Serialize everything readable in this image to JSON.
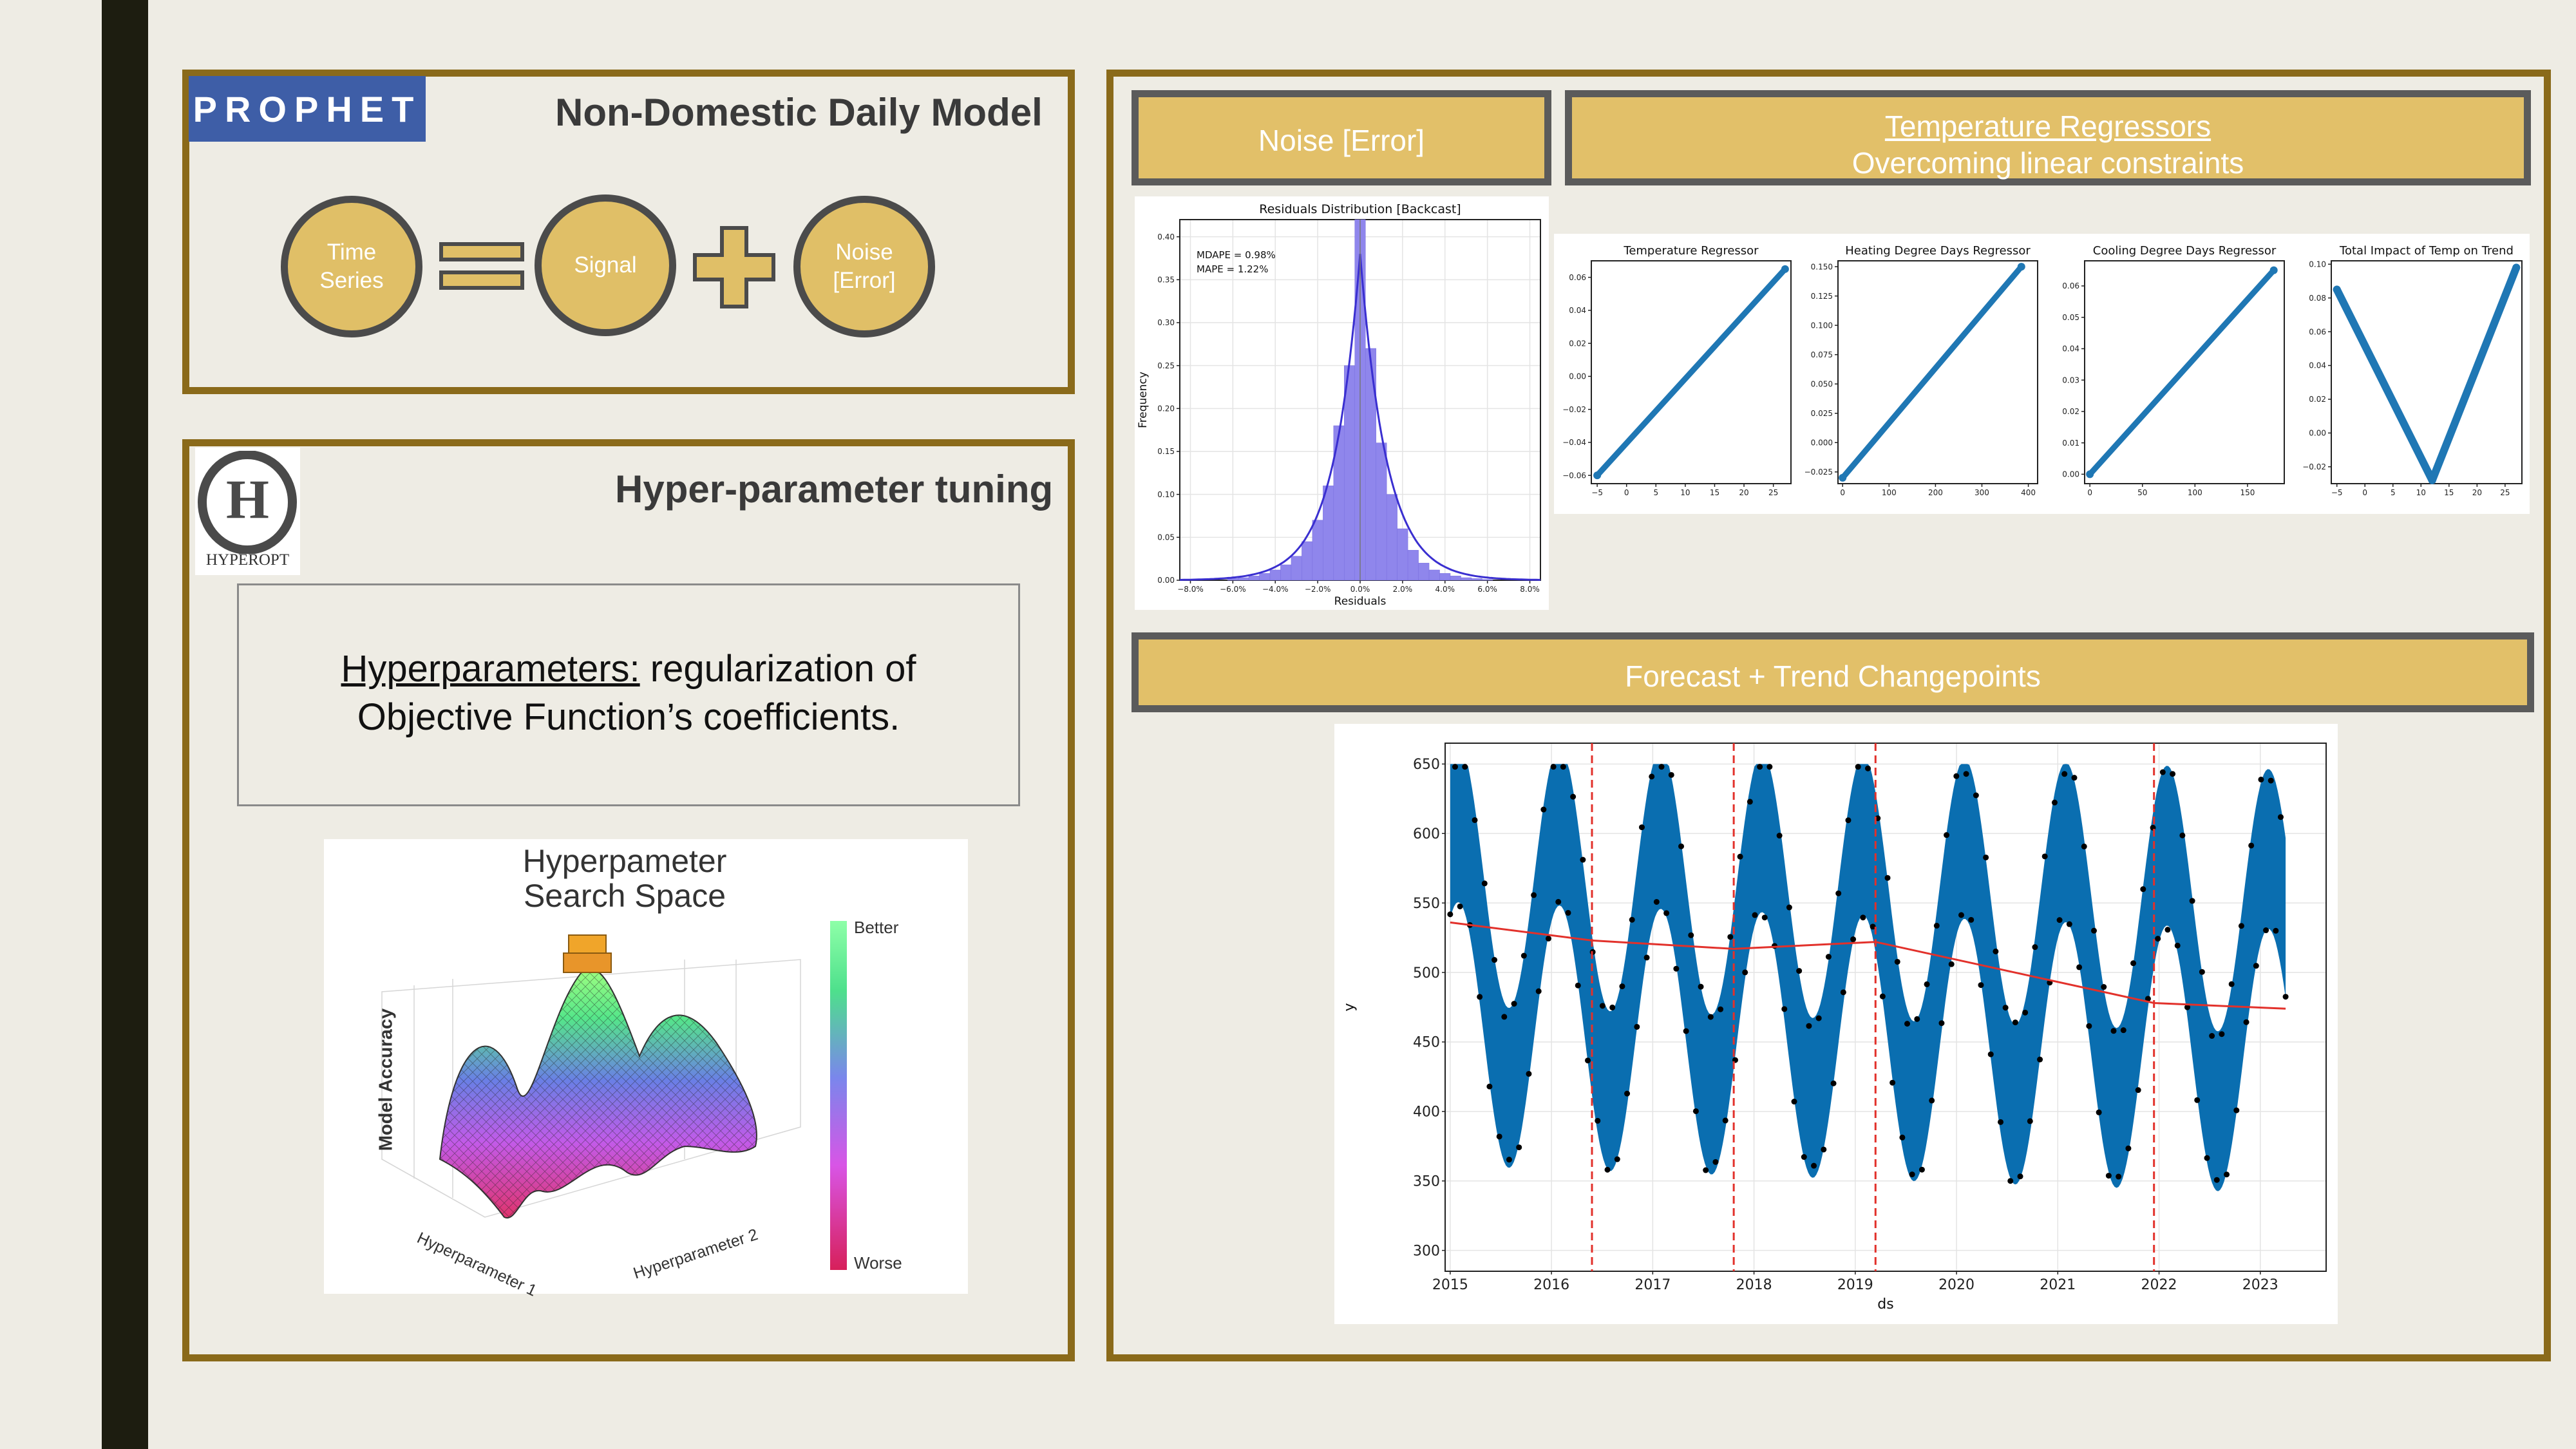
{
  "slide": {
    "prophet_logo": "PROPHET",
    "hyperopt_letter": "H",
    "hyperopt_label": "HYPEROPT",
    "model_title": "Non-Domestic Daily Model",
    "equation": {
      "time_series": "Time\nSeries",
      "signal": "Signal",
      "noise": "Noise\n[Error]"
    },
    "tuning_title": "Hyper-parameter tuning",
    "hyper_box": {
      "term": "Hyperparameters:",
      "line1_rest": " regularization of",
      "line2": "Objective Function’s coefficients."
    },
    "search_space": {
      "title_line1": "Hyperpameter",
      "title_line2": "Search Space",
      "z_label": "Model Accuracy",
      "x_label": "Hyperparameter 1",
      "y_label": "Hyperparameter 2",
      "colorbar_top": "Better",
      "colorbar_bottom": "Worse"
    },
    "noise_banner": "Noise [Error]",
    "temp_banner_title": "Temperature Regressors",
    "temp_banner_sub": "Overcoming linear constraints",
    "forecast_banner": "Forecast + Trend Changepoints"
  },
  "chart_data": [
    {
      "type": "histogram",
      "title": "Residuals Distribution [Backcast]",
      "xlabel": "Residuals",
      "ylabel": "Frequency",
      "annotations": [
        "MDAPE = 0.98%",
        "MAPE = 1.22%"
      ],
      "x_ticks": [
        "−8.0%",
        "−6.0%",
        "−4.0%",
        "−2.0%",
        "0.0%",
        "2.0%",
        "4.0%",
        "6.0%",
        "8.0%"
      ],
      "y_ticks": [
        "0.00",
        "0.05",
        "0.10",
        "0.15",
        "0.20",
        "0.25",
        "0.30",
        "0.35",
        "0.40"
      ],
      "xlim": [
        -8.5,
        8.5
      ],
      "ylim": [
        0,
        0.42
      ],
      "grid": true,
      "bin_centers": [
        -6.0,
        -5.5,
        -5.0,
        -4.5,
        -4.0,
        -3.5,
        -3.0,
        -2.5,
        -2.0,
        -1.5,
        -1.0,
        -0.5,
        0.0,
        0.5,
        1.0,
        1.5,
        2.0,
        2.5,
        3.0,
        3.5,
        4.0,
        4.5,
        5.0,
        5.5,
        6.0
      ],
      "values": [
        0.002,
        0.003,
        0.005,
        0.008,
        0.012,
        0.018,
        0.028,
        0.045,
        0.07,
        0.11,
        0.18,
        0.25,
        0.42,
        0.27,
        0.16,
        0.1,
        0.06,
        0.035,
        0.02,
        0.012,
        0.008,
        0.005,
        0.003,
        0.002,
        0.001
      ]
    },
    {
      "type": "scatter",
      "title": "Temperature Regressor",
      "x_ticks": [
        "−5",
        "0",
        "5",
        "10",
        "15",
        "20",
        "25"
      ],
      "y_ticks": [
        "−0.06",
        "−0.04",
        "−0.02",
        "0.00",
        "0.02",
        "0.04",
        "0.06"
      ],
      "xlim": [
        -6,
        28
      ],
      "ylim": [
        -0.065,
        0.07
      ],
      "points": [
        [
          -5,
          -0.06
        ],
        [
          27,
          0.065
        ]
      ]
    },
    {
      "type": "scatter",
      "title": "Heating Degree Days Regressor",
      "x_ticks": [
        "0",
        "100",
        "200",
        "300",
        "400"
      ],
      "y_ticks": [
        "−0.025",
        "0.000",
        "0.025",
        "0.050",
        "0.075",
        "0.100",
        "0.125",
        "0.150"
      ],
      "xlim": [
        -10,
        420
      ],
      "ylim": [
        -0.035,
        0.155
      ],
      "points": [
        [
          0,
          -0.03
        ],
        [
          385,
          0.15
        ]
      ]
    },
    {
      "type": "scatter",
      "title": "Cooling Degree Days Regressor",
      "x_ticks": [
        "0",
        "50",
        "100",
        "150"
      ],
      "y_ticks": [
        "0.00",
        "0.01",
        "0.02",
        "0.03",
        "0.04",
        "0.05",
        "0.06"
      ],
      "xlim": [
        -5,
        185
      ],
      "ylim": [
        -0.003,
        0.068
      ],
      "points": [
        [
          0,
          0.0
        ],
        [
          175,
          0.065
        ]
      ]
    },
    {
      "type": "scatter",
      "title": "Total Impact of Temp on Trend",
      "x_ticks": [
        "−5",
        "0",
        "5",
        "10",
        "15",
        "20",
        "25"
      ],
      "y_ticks": [
        "−0.02",
        "0.00",
        "0.02",
        "0.04",
        "0.06",
        "0.08",
        "0.10"
      ],
      "xlim": [
        -6,
        28
      ],
      "ylim": [
        -0.03,
        0.102
      ],
      "points": [
        [
          -5,
          0.085
        ],
        [
          12,
          -0.028
        ],
        [
          27,
          0.098
        ]
      ]
    },
    {
      "type": "line",
      "xlabel": "ds",
      "ylabel": "y",
      "x_ticks": [
        "2015",
        "2016",
        "2017",
        "2018",
        "2019",
        "2020",
        "2021",
        "2022",
        "2023"
      ],
      "y_ticks": [
        "300",
        "350",
        "400",
        "450",
        "500",
        "550",
        "600",
        "650"
      ],
      "xlim": [
        2014.95,
        2023.65
      ],
      "ylim": [
        285,
        665
      ],
      "changepoints": [
        2016.4,
        2017.8,
        2019.2,
        2021.95
      ],
      "trend": {
        "x": [
          2015.0,
          2016.4,
          2017.8,
          2019.2,
          2021.95,
          2023.25
        ],
        "y": [
          536,
          523,
          517,
          522,
          478,
          474
        ]
      }
    }
  ]
}
